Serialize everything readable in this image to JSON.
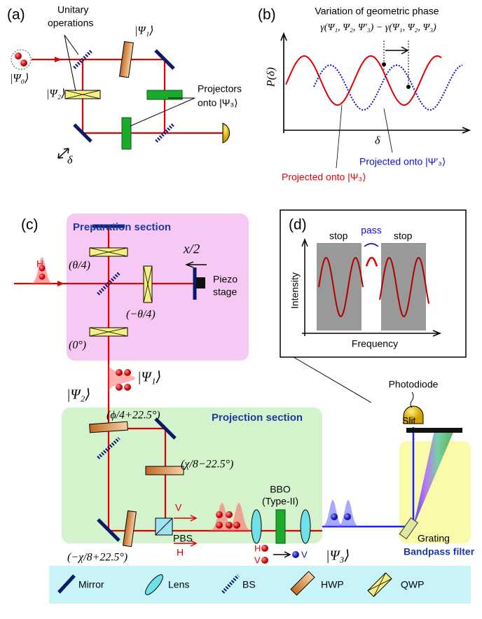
{
  "panel_a": {
    "label": "(a)",
    "unitary": [
      "Unitary",
      "operations"
    ],
    "psi1": "|Ψ₁⟩",
    "psi0": "|Ψ₀⟩",
    "psi2": "|Ψ₂⟩",
    "projectors": [
      "Projectors",
      "onto |Ψ₃⟩"
    ],
    "delta": "δ"
  },
  "panel_b": {
    "label": "(b)",
    "title": "Variation of geometric phase",
    "formula": "γ(Ψ₁, Ψ₂, Ψ′₃) − γ(Ψ₁, Ψ₂, Ψ₃)",
    "y_label": "P(δ)",
    "x_label": "δ",
    "blue_label": "Projected onto |Ψ′₃⟩",
    "red_label": "Projected onto |Ψ₃⟩"
  },
  "panel_c": {
    "label": "(c)",
    "preparation": "Preparation section",
    "input_pol": "H",
    "theta4": "(θ/4)",
    "x2": "x/2",
    "piezo": [
      "Piezo",
      "stage"
    ],
    "mtheta4": "(−θ/4)",
    "zero": "(0°)",
    "psi1": "|Ψ₁⟩",
    "psi2": "|Ψ₂⟩",
    "phi": "(ϕ/4+22.5°)",
    "projection": "Projection section",
    "chi1": "(χ/8−22.5°)",
    "v_out": "V",
    "pbs": "PBS",
    "h_out": "H",
    "chi2": "(−χ/8+22.5°)",
    "bbo": [
      "BBO",
      "(Type-II)"
    ],
    "psi3": "|Ψ₃⟩",
    "sfg_h": "H",
    "sfg_v": "V",
    "sfg_out": "V",
    "slit": "Slit",
    "grating": "Grating",
    "bandpass": "Bandpass filter",
    "photodiode": "Photodiode"
  },
  "panel_d": {
    "label": "(d)",
    "stop_left": "stop",
    "pass": "pass",
    "stop_right": "stop",
    "y_label": "Intensity",
    "x_label": "Frequency"
  },
  "legend": [
    "Mirror",
    "Lens",
    "BS",
    "HWP",
    "QWP"
  ]
}
